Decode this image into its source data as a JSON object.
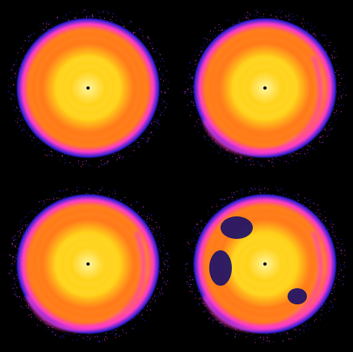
{
  "colors": {
    "background": "#000000",
    "halo": "#2a1fd6",
    "outer": "#ff3cc8",
    "mid": "#ff7a1a",
    "inner": "#ffd21a",
    "core": "#fff6a0",
    "center_dot": "#000000"
  },
  "panels": [
    {
      "name": "disk-panel-top-left",
      "stage": "smooth",
      "spiral_strength": 0.15
    },
    {
      "name": "disk-panel-top-right",
      "stage": "one-arm",
      "spiral_strength": 0.35
    },
    {
      "name": "disk-panel-bottom-left",
      "stage": "spiral",
      "spiral_strength": 0.55
    },
    {
      "name": "disk-panel-bottom-right",
      "stage": "fragmented",
      "spiral_strength": 0.9
    }
  ]
}
